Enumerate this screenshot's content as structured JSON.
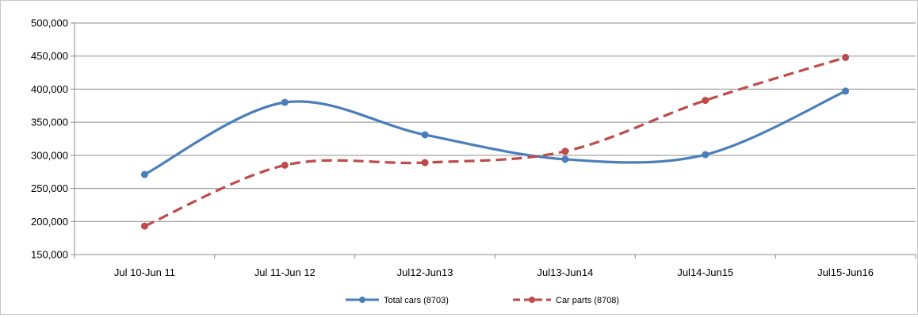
{
  "chart_data": {
    "type": "line",
    "title": "",
    "xlabel": "",
    "ylabel": "",
    "categories": [
      "Jul 10-Jun 11",
      "Jul 11-Jun 12",
      "Jul12-Jun13",
      "Jul13-Jun14",
      "Jul14-Jun15",
      "Jul15-Jun16"
    ],
    "ylim": [
      150000,
      500000
    ],
    "y_ticks": [
      "150,000",
      "200,000",
      "250,000",
      "300,000",
      "350,000",
      "400,000",
      "450,000",
      "500,000"
    ],
    "grid": "horizontal",
    "smooth": true,
    "legend_position": "bottom",
    "series": [
      {
        "name": "Total cars (8703)",
        "values": [
          271000,
          380000,
          331000,
          294000,
          301000,
          397000
        ],
        "color": "#4a7ebb",
        "dash": "solid"
      },
      {
        "name": "Car parts (8708)",
        "values": [
          193000,
          285000,
          289000,
          306000,
          383000,
          448000
        ],
        "color": "#be4b48",
        "dash": "dashed"
      }
    ]
  }
}
